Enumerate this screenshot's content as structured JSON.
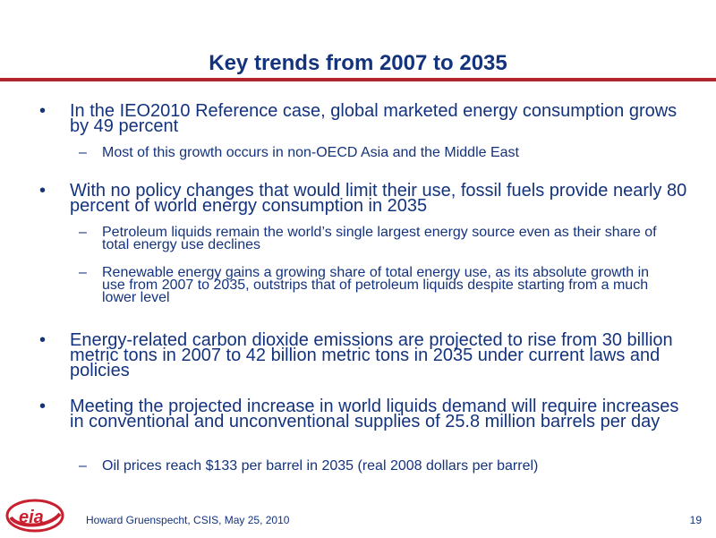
{
  "slide": {
    "title": "Key trends from 2007 to 2035",
    "bullets": [
      {
        "text": "In the IEO2010 Reference case, global marketed energy consumption grows by 49 percent",
        "subs": [
          "Most of this growth occurs in non-OECD Asia and the Middle East"
        ]
      },
      {
        "text": "With no policy changes that would limit their use, fossil fuels provide nearly 80 percent of world energy consumption in 2035",
        "subs": [
          "Petroleum liquids remain the world’s single largest energy source even as their share of total energy use declines",
          "Renewable energy gains a growing share of total energy use, as its absolute growth in use from 2007 to 2035, outstrips that of petroleum liquids despite starting from a much lower level"
        ]
      },
      {
        "text": "Energy-related carbon dioxide emissions are projected to rise from 30 billion metric tons in 2007 to 42 billion metric tons in 2035 under current laws and policies",
        "subs": []
      },
      {
        "text": "Meeting the projected increase in world liquids demand will require increases in conventional and unconventional supplies of 25.8 million barrels per day",
        "subs": [
          "Oil prices reach $133 per barrel in 2035 (real 2008 dollars per barrel)"
        ]
      }
    ],
    "bullet_symbol": "•",
    "sub_symbol": "–"
  },
  "footer": {
    "logo_text": "eia",
    "credit": "Howard Gruenspecht, CSIS, May 25, 2010",
    "page_number": "19"
  },
  "colors": {
    "text": "#14337d",
    "rule": "#b3252c",
    "logo_red": "#c8202f"
  },
  "icons": {
    "logo": "eia-logo"
  }
}
